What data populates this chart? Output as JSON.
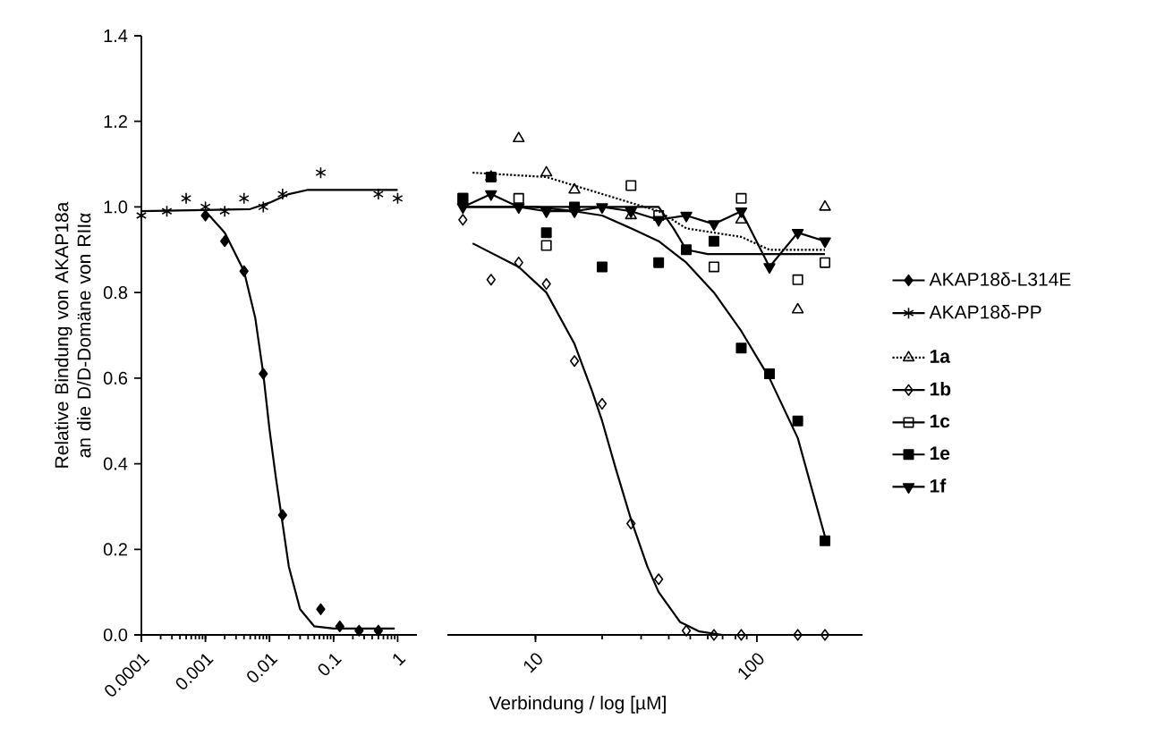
{
  "chart_data": [
    {
      "type": "scatter",
      "ylabel": "Relative Bindung von AKAP18a an die D/D-Domäne von RIIα",
      "log": "x",
      "xlim": [
        0.0001,
        2
      ],
      "xticks": [
        0.0001,
        0.001,
        0.01,
        0.1,
        1
      ],
      "ylim": [
        0,
        1.4
      ],
      "yticks": [
        {
          "value": 0,
          "label": "0.0"
        },
        {
          "value": 0.2,
          "label": "0.2"
        },
        {
          "value": 0.4,
          "label": "0.4"
        },
        {
          "value": 0.6,
          "label": "0.6"
        },
        {
          "value": 0.8,
          "label": "0.8"
        },
        {
          "value": 1,
          "label": "1.0"
        },
        {
          "value": 1.2,
          "label": "1.2"
        },
        {
          "value": 1.4,
          "label": "1.4"
        }
      ],
      "legend": "right",
      "series": [
        {
          "name": "AKAP18δ-L314E",
          "color": "#000000",
          "marker": "diamond",
          "x": [
            0.001,
            0.002,
            0.004,
            0.008,
            0.016,
            0.063,
            0.125,
            0.25,
            0.5
          ],
          "values": [
            0.98,
            0.92,
            0.85,
            0.61,
            0.28,
            0.06,
            0.02,
            0.01,
            0.01
          ]
        },
        {
          "name": "AKAP18δ-PP",
          "color": "#000000",
          "marker": "cross",
          "x": [
            0.0001,
            0.00025,
            0.0005,
            0.001,
            0.002,
            0.004,
            0.008,
            0.016,
            0.063,
            0.5,
            1
          ],
          "values": [
            0.98,
            0.99,
            1.02,
            1.0,
            0.99,
            1.02,
            1.0,
            1.03,
            1.08,
            1.03,
            1.02
          ]
        },
        {
          "type": "line",
          "color": "#000000",
          "x": [
            0.001,
            0.002,
            0.004,
            0.006,
            0.008,
            0.01,
            0.0125,
            0.016,
            0.02,
            0.03,
            0.05,
            0.1,
            0.9
          ],
          "values": [
            0.99,
            0.94,
            0.85,
            0.74,
            0.61,
            0.48,
            0.37,
            0.26,
            0.16,
            0.06,
            0.02,
            0.015,
            0.015
          ]
        },
        {
          "type": "line",
          "color": "#000000",
          "x": [
            0.0001,
            0.005,
            0.01,
            0.02,
            0.04,
            1
          ],
          "values": [
            0.99,
            0.995,
            1.01,
            1.03,
            1.04,
            1.04
          ]
        }
      ]
    },
    {
      "type": "scatter",
      "xlabel": "Verbindung / log [µM]",
      "log": "x",
      "xlim": [
        4,
        300
      ],
      "xticks": [
        10,
        100
      ],
      "ylim": [
        0,
        1.4
      ],
      "tick_labels": "x",
      "legend": "right",
      "series": [
        {
          "name": "1a",
          "color": "#000000",
          "marker": "triangle",
          "line_style": "dotted",
          "x": [
            6.3,
            8.4,
            11.2,
            15,
            27,
            85,
            153,
            203
          ],
          "values": [
            1.07,
            1.16,
            1.08,
            1.04,
            0.98,
            0.97,
            0.76,
            1.0
          ]
        },
        {
          "name": "1b",
          "color": "#000000",
          "marker": "diamond",
          "x": [
            4.7,
            6.3,
            8.4,
            11.2,
            15,
            20,
            27,
            36,
            48,
            64,
            85,
            153,
            203
          ],
          "values": [
            0.97,
            0.83,
            0.87,
            0.82,
            0.64,
            0.54,
            0.26,
            0.13,
            0.01,
            0.0,
            0.0,
            0.0,
            0.0
          ]
        },
        {
          "name": "1c",
          "color": "#000000",
          "marker": "square",
          "x": [
            4.7,
            8.4,
            11.2,
            20,
            27,
            36,
            64,
            85,
            153,
            203
          ],
          "values": [
            1.02,
            1.02,
            0.91,
            null,
            1.05,
            0.98,
            0.86,
            1.02,
            0.83,
            0.87
          ]
        },
        {
          "name": "1e",
          "color": "#000000",
          "marker": "square",
          "x": [
            4.7,
            6.3,
            8.4,
            11.2,
            15,
            20,
            36,
            48,
            64,
            85,
            114,
            153,
            203
          ],
          "values": [
            1.02,
            1.07,
            null,
            0.94,
            1.0,
            0.86,
            0.87,
            0.9,
            0.92,
            0.67,
            0.61,
            0.5,
            0.22
          ]
        },
        {
          "name": "1f",
          "type": "line",
          "color": "#000000",
          "marker": "triangle_down",
          "x": [
            4.7,
            6.3,
            8.4,
            11.2,
            15,
            20,
            27,
            36,
            48,
            64,
            85,
            114,
            153,
            203
          ],
          "values": [
            1.0,
            1.03,
            1.0,
            0.99,
            0.99,
            1.0,
            0.99,
            0.97,
            0.98,
            0.96,
            0.99,
            0.86,
            0.94,
            0.92
          ]
        },
        {
          "type": "line",
          "color": "#000000",
          "line_style": "dotted",
          "x": [
            5.2,
            11.2,
            15,
            36,
            48,
            85,
            114,
            203
          ],
          "values": [
            1.08,
            1.07,
            1.05,
            0.99,
            0.95,
            0.93,
            0.9,
            0.9
          ]
        },
        {
          "type": "line",
          "color": "#000000",
          "x": [
            5.2,
            8.4,
            11.2,
            15,
            18,
            20,
            23,
            27,
            32,
            36,
            45,
            55,
            70,
            93
          ],
          "values": [
            0.915,
            0.86,
            0.8,
            0.68,
            0.57,
            0.5,
            0.39,
            0.27,
            0.16,
            0.1,
            0.03,
            0.008,
            0.0,
            0.0
          ]
        },
        {
          "type": "line",
          "color": "#000000",
          "x": [
            4.7,
            36,
            42,
            48,
            60,
            203
          ],
          "values": [
            1.0,
            1.0,
            0.95,
            0.9,
            0.89,
            0.89
          ]
        },
        {
          "type": "line",
          "color": "#000000",
          "x": [
            4.7,
            10,
            15,
            20,
            27,
            36,
            48,
            64,
            85,
            114,
            153,
            203
          ],
          "values": [
            1.0,
            1.0,
            0.99,
            0.98,
            0.95,
            0.92,
            0.87,
            0.8,
            0.71,
            0.6,
            0.46,
            0.23
          ]
        }
      ]
    }
  ]
}
